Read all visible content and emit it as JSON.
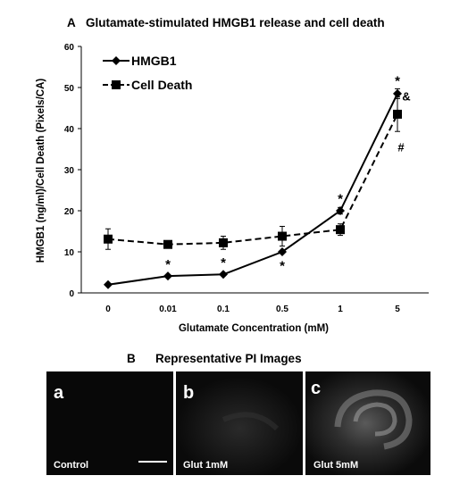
{
  "panel_a_letter": "A",
  "panel_b_letter": "B",
  "panel_b_title": "Representative PI Images",
  "chart_data": {
    "type": "line",
    "title": "Glutamate-stimulated HMGB1 release and cell death",
    "xlabel": "Glutamate Concentration (mM)",
    "ylabel": "HMGB1 (ng/ml)/Cell Death (Pixels/CA)",
    "categories": [
      "0",
      "0.01",
      "0.1",
      "0.5",
      "1",
      "5"
    ],
    "ylim": [
      0,
      60
    ],
    "yticks": [
      0,
      10,
      20,
      30,
      40,
      50,
      60
    ],
    "grid": false,
    "legend_placement": "top-left",
    "series": [
      {
        "name": "HMGB1",
        "line": "solid",
        "marker": "diamond",
        "color": "#000000",
        "values": [
          2,
          4.1,
          4.5,
          10,
          20,
          48.5
        ],
        "errors": [
          0,
          0,
          0,
          0,
          0.8,
          1.2
        ]
      },
      {
        "name": "Cell Death",
        "line": "dashed",
        "marker": "square",
        "color": "#000000",
        "values": [
          13.1,
          11.8,
          12.2,
          13.8,
          15.4,
          43.5
        ],
        "errors": [
          2.5,
          0.6,
          1.6,
          2.4,
          1.4,
          4.2
        ]
      }
    ],
    "annotations": [
      {
        "text": "*",
        "category": "0.01",
        "y": 7.2,
        "dx": 0
      },
      {
        "text": "*",
        "category": "0.1",
        "y": 7.6,
        "dx": 0
      },
      {
        "text": "*",
        "category": "0.5",
        "y": 6.9,
        "dx": 0
      },
      {
        "text": "*",
        "category": "1",
        "y": 23.2,
        "dx": 0
      },
      {
        "text": "*",
        "category": "5",
        "y": 51.8,
        "dx": 0
      },
      {
        "text": "&",
        "category": "5",
        "y": 48.2,
        "dx": 10
      },
      {
        "text": "#",
        "category": "5",
        "y": 35.8,
        "dx": 4
      }
    ]
  },
  "images": [
    {
      "letter": "a",
      "caption": "Control",
      "scale_bar": true,
      "intensity": "dark"
    },
    {
      "letter": "b",
      "caption": "Glut 1mM",
      "scale_bar": false,
      "intensity": "faint"
    },
    {
      "letter": "c",
      "caption": "Glut 5mM",
      "scale_bar": false,
      "intensity": "bright"
    }
  ]
}
